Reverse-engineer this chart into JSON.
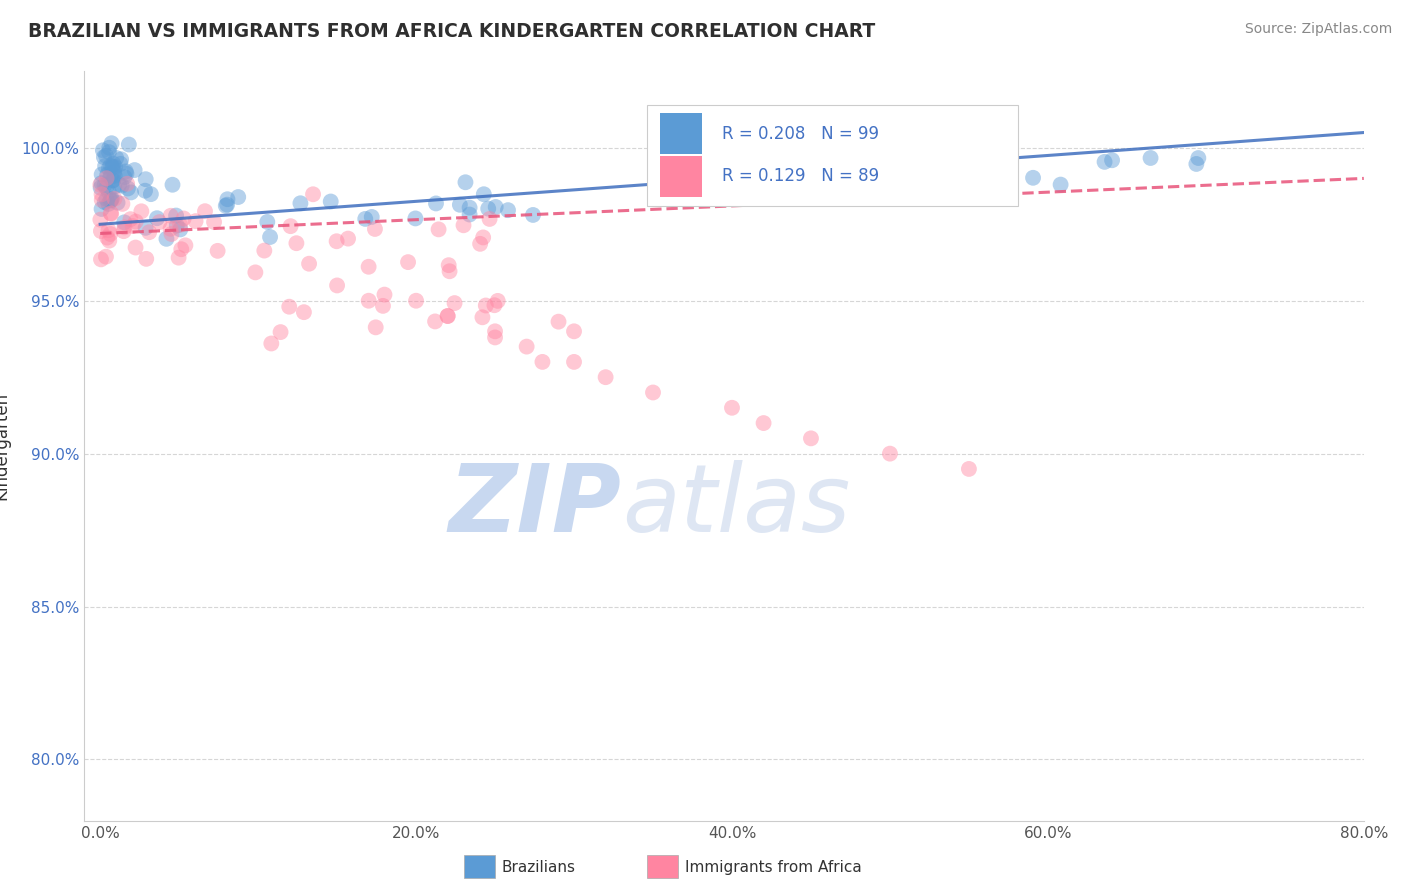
{
  "title": "BRAZILIAN VS IMMIGRANTS FROM AFRICA KINDERGARTEN CORRELATION CHART",
  "source": "Source: ZipAtlas.com",
  "ylabel": "Kindergarten",
  "xlabel_ticks": [
    "0.0%",
    "20.0%",
    "40.0%",
    "60.0%",
    "80.0%"
  ],
  "xlabel_values": [
    0.0,
    20.0,
    40.0,
    60.0,
    80.0
  ],
  "ylabel_ticks": [
    "80.0%",
    "85.0%",
    "90.0%",
    "95.0%",
    "100.0%"
  ],
  "ylabel_values": [
    80.0,
    85.0,
    90.0,
    95.0,
    100.0
  ],
  "xlim": [
    -1.0,
    80.0
  ],
  "ylim": [
    78.0,
    102.5
  ],
  "blue_R": 0.208,
  "blue_N": 99,
  "pink_R": 0.129,
  "pink_N": 89,
  "blue_color": "#5B9BD5",
  "pink_color": "#FF85A1",
  "blue_trend_color": "#3F6FBF",
  "pink_trend_color": "#E8547A",
  "legend_label_blue": "Brazilians",
  "legend_label_pink": "Immigrants from Africa",
  "watermark_zip": "ZIP",
  "watermark_atlas": "atlas",
  "watermark_color": "#C8D8F0",
  "background_color": "#FFFFFF",
  "grid_color": "#CCCCCC",
  "title_color": "#2F2F2F"
}
